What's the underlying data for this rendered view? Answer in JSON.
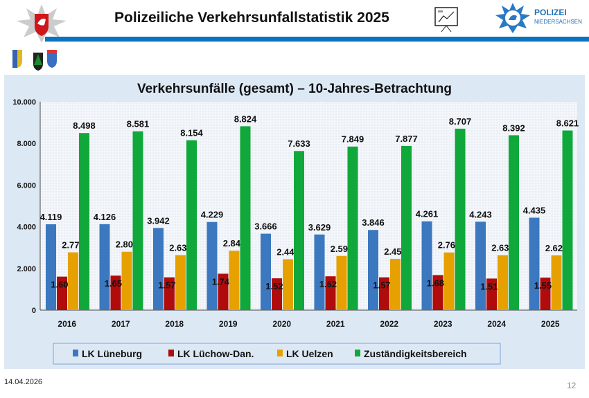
{
  "header": {
    "title": "Polizeiliche Verkehrsunfallstatistik 2025",
    "brand": "POLIZEI",
    "brand_sub": "NIEDERSACHSEN"
  },
  "footer": {
    "date": "14.04.2026",
    "page": "12"
  },
  "colors": {
    "accent": "#0a72bf",
    "panel": "#dde8f5"
  },
  "chart_data": {
    "type": "bar",
    "title": "Verkehrsunfälle (gesamt) – 10-Jahres-Betrachtung",
    "categories": [
      "2016",
      "2017",
      "2018",
      "2019",
      "2020",
      "2021",
      "2022",
      "2023",
      "2024",
      "2025"
    ],
    "ylim": [
      0,
      10000
    ],
    "yticks": [
      "0",
      "2.000",
      "4.000",
      "6.000",
      "8.000",
      "10.000"
    ],
    "grid": false,
    "legend_position": "bottom",
    "series": [
      {
        "name": "LK Lüneburg",
        "color": "#3b78c0",
        "values": [
          4119,
          4126,
          3942,
          4229,
          3666,
          3629,
          3846,
          4261,
          4243,
          4435
        ],
        "labels": [
          "4.119",
          "4.126",
          "3.942",
          "4.229",
          "3.666",
          "3.629",
          "3.846",
          "4.261",
          "4.243",
          "4.435"
        ]
      },
      {
        "name": "LK Lüchow-Dan.",
        "color": "#b00c0c",
        "values": [
          1607,
          1654,
          1573,
          1746,
          1525,
          1622,
          1573,
          1680,
          1514,
          1559
        ],
        "labels": [
          "1.607",
          "1.654",
          "1.573",
          "1.746",
          "1.525",
          "1.622",
          "1.573",
          "1.680",
          "1.514",
          "1.559"
        ]
      },
      {
        "name": "LK Uelzen",
        "color": "#e6a100",
        "values": [
          2772,
          2801,
          2639,
          2849,
          2442,
          2598,
          2458,
          2766,
          2635,
          2627
        ],
        "labels": [
          "2.772",
          "2.801",
          "2.639",
          "2.849",
          "2.442",
          "2.598",
          "2.458",
          "2.766",
          "2.635",
          "2.627"
        ]
      },
      {
        "name": "Zuständigkeitsbereich",
        "color": "#10a83a",
        "values": [
          8498,
          8581,
          8154,
          8824,
          7633,
          7849,
          7877,
          8707,
          8392,
          8621
        ],
        "labels": [
          "8.498",
          "8.581",
          "8.154",
          "8.824",
          "7.633",
          "7.849",
          "7.877",
          "8.707",
          "8.392",
          "8.621"
        ]
      }
    ]
  }
}
